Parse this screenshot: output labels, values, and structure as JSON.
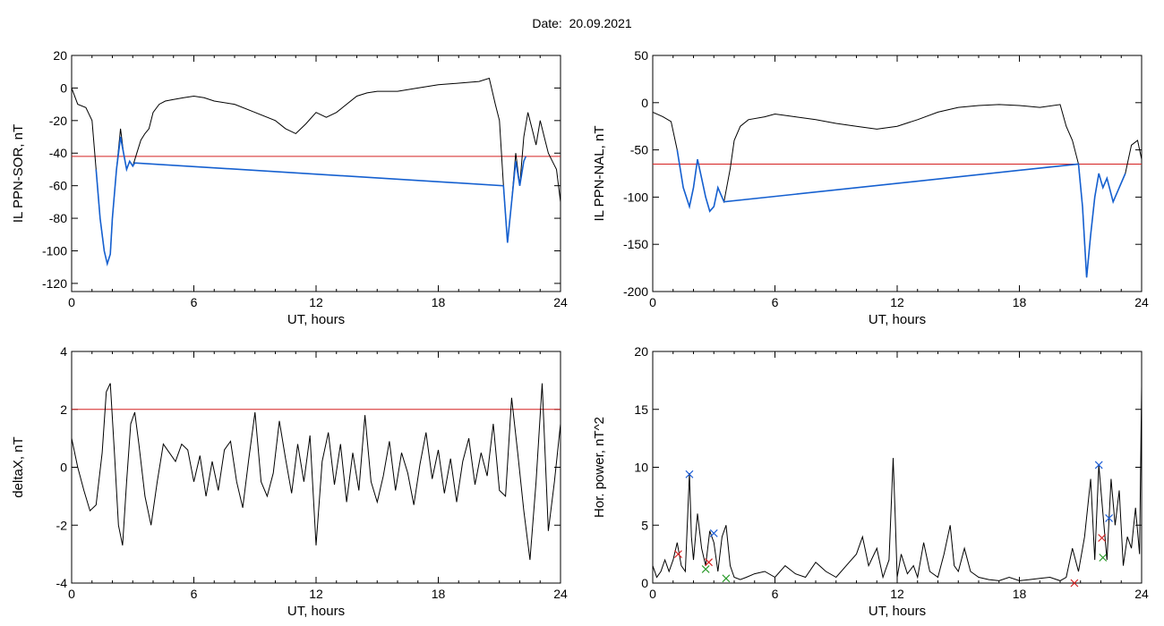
{
  "title": "Date:  20.09.2021",
  "colors": {
    "trace": "#000000",
    "threshold": "#d42020",
    "substorm": "#1560d0",
    "marker_blue": "#1f5fd6",
    "marker_red": "#d42020",
    "marker_green": "#2a9a2a"
  },
  "chart_data": [
    {
      "id": "p1",
      "type": "line",
      "xlabel": "UT, hours",
      "ylabel": "IL PPN-SOR, nT",
      "xlim": [
        0,
        24
      ],
      "ylim": [
        -125,
        20
      ],
      "xticks": [
        0,
        6,
        12,
        18,
        24
      ],
      "yticks": [
        20,
        0,
        -20,
        -40,
        -60,
        -80,
        -100,
        -120
      ],
      "threshold": -42,
      "series": [
        {
          "x": [
            0,
            0.3,
            0.7,
            1.0,
            1.2,
            1.4,
            1.6,
            1.75,
            1.9,
            2.0,
            2.2,
            2.4,
            2.55,
            2.7,
            2.85,
            3.0,
            3.2,
            3.4,
            3.6,
            3.8,
            4.0,
            4.3,
            4.6,
            5.0,
            5.5,
            6.0,
            6.5,
            7.0,
            8.0,
            9.0,
            10.0,
            10.5,
            11.0,
            11.5,
            12.0,
            12.5,
            13.0,
            14.0,
            14.5,
            15.0,
            16.0,
            17.0,
            18.0,
            19.0,
            20.0,
            20.5,
            20.8,
            21.0,
            21.2,
            21.4,
            21.6,
            21.8,
            22.0,
            22.2,
            22.4,
            22.6,
            22.8,
            23.0,
            23.2,
            23.4,
            23.6,
            23.8,
            24.0
          ],
          "y": [
            0,
            -10,
            -12,
            -20,
            -50,
            -80,
            -100,
            -108,
            -102,
            -80,
            -50,
            -25,
            -40,
            -50,
            -45,
            -48,
            -40,
            -32,
            -28,
            -25,
            -15,
            -10,
            -8,
            -7,
            -6,
            -5,
            -6,
            -8,
            -10,
            -15,
            -20,
            -25,
            -28,
            -22,
            -15,
            -18,
            -15,
            -5,
            -3,
            -2,
            -2,
            0,
            2,
            3,
            4,
            6,
            -10,
            -20,
            -60,
            -95,
            -70,
            -40,
            -60,
            -30,
            -15,
            -25,
            -35,
            -20,
            -30,
            -40,
            -45,
            -50,
            -70
          ]
        },
        {
          "x": [
            1.2,
            1.4,
            1.6,
            1.75,
            1.9,
            2.0,
            2.2,
            2.4,
            2.55,
            2.7,
            2.85,
            3.0,
            3.1,
            21.2,
            21.4,
            21.6,
            21.8,
            22.0,
            22.2,
            22.3
          ],
          "y": [
            -50,
            -80,
            -100,
            -108,
            -102,
            -80,
            -50,
            -30,
            -40,
            -50,
            -45,
            -48,
            -46,
            -60,
            -95,
            -70,
            -45,
            -60,
            -45,
            -42
          ]
        }
      ]
    },
    {
      "id": "p2",
      "type": "line",
      "xlabel": "UT, hours",
      "ylabel": "IL PPN-NAL, nT",
      "xlim": [
        0,
        24
      ],
      "ylim": [
        -200,
        50
      ],
      "xticks": [
        0,
        6,
        12,
        18,
        24
      ],
      "yticks": [
        50,
        0,
        -50,
        -100,
        -150,
        -200
      ],
      "threshold": -65,
      "series": [
        {
          "x": [
            0,
            0.5,
            0.9,
            1.2,
            1.5,
            1.8,
            2.0,
            2.2,
            2.4,
            2.6,
            2.8,
            3.0,
            3.2,
            3.5,
            3.8,
            4.0,
            4.3,
            4.7,
            5.5,
            6.0,
            7.0,
            8.0,
            9.0,
            10.0,
            11.0,
            12.0,
            13.0,
            14.0,
            15.0,
            16.0,
            17.0,
            18.0,
            19.0,
            20.0,
            20.3,
            20.6,
            20.9,
            21.1,
            21.3,
            21.5,
            21.7,
            21.9,
            22.1,
            22.3,
            22.6,
            22.9,
            23.2,
            23.5,
            23.8,
            24.0
          ],
          "y": [
            -10,
            -15,
            -20,
            -50,
            -90,
            -110,
            -90,
            -60,
            -80,
            -100,
            -115,
            -110,
            -90,
            -105,
            -70,
            -40,
            -25,
            -18,
            -15,
            -12,
            -15,
            -18,
            -22,
            -25,
            -28,
            -25,
            -18,
            -10,
            -5,
            -3,
            -2,
            -3,
            -5,
            -2,
            -25,
            -40,
            -65,
            -110,
            -185,
            -140,
            -100,
            -75,
            -90,
            -80,
            -105,
            -90,
            -75,
            -45,
            -40,
            -60
          ]
        },
        {
          "x": [
            1.2,
            1.5,
            1.8,
            2.0,
            2.2,
            2.4,
            2.6,
            2.8,
            3.0,
            3.2,
            3.5,
            20.9,
            21.1,
            21.3,
            21.5,
            21.7,
            21.9,
            22.1,
            22.3,
            22.6,
            22.9,
            23.2
          ],
          "y": [
            -50,
            -90,
            -110,
            -90,
            -60,
            -80,
            -100,
            -115,
            -110,
            -90,
            -105,
            -65,
            -110,
            -185,
            -140,
            -100,
            -75,
            -90,
            -80,
            -105,
            -90,
            -75
          ]
        }
      ]
    },
    {
      "id": "p3",
      "type": "line",
      "xlabel": "UT, hours",
      "ylabel": "deltaX, nT",
      "xlim": [
        0,
        24
      ],
      "ylim": [
        -4,
        4
      ],
      "xticks": [
        0,
        6,
        12,
        18,
        24
      ],
      "yticks": [
        4,
        2,
        0,
        -2,
        -4
      ],
      "threshold": 2,
      "series": [
        {
          "x": [
            0,
            0.3,
            0.6,
            0.9,
            1.2,
            1.5,
            1.7,
            1.9,
            2.1,
            2.3,
            2.5,
            2.7,
            2.9,
            3.1,
            3.3,
            3.6,
            3.9,
            4.2,
            4.5,
            4.8,
            5.1,
            5.4,
            5.7,
            6.0,
            6.3,
            6.6,
            6.9,
            7.2,
            7.5,
            7.8,
            8.1,
            8.4,
            8.7,
            9.0,
            9.3,
            9.6,
            9.9,
            10.2,
            10.5,
            10.8,
            11.1,
            11.4,
            11.7,
            12.0,
            12.3,
            12.6,
            12.9,
            13.2,
            13.5,
            13.8,
            14.1,
            14.4,
            14.7,
            15.0,
            15.3,
            15.6,
            15.9,
            16.2,
            16.5,
            16.8,
            17.1,
            17.4,
            17.7,
            18.0,
            18.3,
            18.6,
            18.9,
            19.2,
            19.5,
            19.8,
            20.1,
            20.4,
            20.7,
            21.0,
            21.3,
            21.6,
            21.9,
            22.2,
            22.5,
            22.8,
            23.1,
            23.4,
            23.7,
            24.0
          ],
          "y": [
            1.0,
            0.0,
            -0.8,
            -1.5,
            -1.3,
            0.5,
            2.6,
            2.9,
            0.5,
            -2.0,
            -2.7,
            -0.5,
            1.5,
            1.9,
            0.8,
            -1.0,
            -2.0,
            -0.5,
            0.8,
            0.5,
            0.2,
            0.8,
            0.6,
            -0.5,
            0.4,
            -1.0,
            0.2,
            -0.8,
            0.6,
            0.9,
            -0.5,
            -1.4,
            0.3,
            1.9,
            -0.5,
            -1.0,
            -0.2,
            1.6,
            0.3,
            -0.9,
            0.8,
            -0.5,
            1.1,
            -2.7,
            0.2,
            1.2,
            -0.6,
            0.8,
            -1.2,
            0.5,
            -0.8,
            1.8,
            -0.5,
            -1.2,
            -0.3,
            0.9,
            -0.8,
            0.5,
            -0.2,
            -1.3,
            0.1,
            1.2,
            -0.4,
            0.6,
            -0.9,
            0.3,
            -1.2,
            0.2,
            1.0,
            -0.6,
            0.5,
            -0.3,
            1.5,
            -0.8,
            -1.0,
            2.4,
            0.5,
            -1.5,
            -3.2,
            -0.5,
            2.9,
            -2.2,
            -0.5,
            1.5
          ]
        }
      ]
    },
    {
      "id": "p4",
      "type": "line",
      "xlabel": "UT, hours",
      "ylabel": "Hor. power, nT^2",
      "xlim": [
        0,
        24
      ],
      "ylim": [
        0,
        20
      ],
      "xticks": [
        0,
        6,
        12,
        18,
        24
      ],
      "yticks": [
        20,
        15,
        10,
        5,
        0
      ],
      "threshold": null,
      "series": [
        {
          "x": [
            0,
            0.2,
            0.4,
            0.6,
            0.8,
            1.0,
            1.2,
            1.4,
            1.6,
            1.8,
            1.9,
            2.0,
            2.2,
            2.4,
            2.6,
            2.8,
            3.0,
            3.2,
            3.4,
            3.6,
            3.8,
            4.0,
            4.3,
            4.6,
            5.0,
            5.5,
            6.0,
            6.5,
            7.0,
            7.5,
            8.0,
            8.5,
            9.0,
            9.5,
            10.0,
            10.3,
            10.6,
            11.0,
            11.3,
            11.6,
            11.8,
            11.9,
            12.0,
            12.2,
            12.5,
            12.8,
            13.0,
            13.3,
            13.6,
            14.0,
            14.3,
            14.6,
            14.8,
            15.0,
            15.3,
            15.6,
            16.0,
            16.5,
            17.0,
            17.5,
            18.0,
            18.5,
            19.0,
            19.5,
            20.0,
            20.3,
            20.6,
            20.9,
            21.2,
            21.5,
            21.7,
            21.9,
            22.1,
            22.3,
            22.5,
            22.7,
            22.9,
            23.1,
            23.3,
            23.5,
            23.7,
            23.9,
            24.0
          ],
          "y": [
            1.5,
            0.5,
            1.0,
            2.0,
            1.0,
            2.0,
            3.5,
            1.5,
            1.0,
            9.5,
            4.0,
            2.0,
            6.0,
            3.0,
            1.5,
            4.5,
            3.5,
            1.0,
            4.0,
            5.0,
            1.5,
            0.5,
            0.3,
            0.5,
            0.8,
            1.0,
            0.5,
            1.5,
            0.8,
            0.5,
            1.8,
            1.0,
            0.5,
            1.5,
            2.5,
            4.0,
            1.5,
            3.0,
            0.5,
            2.0,
            10.8,
            6.0,
            0.5,
            2.5,
            0.8,
            1.5,
            0.5,
            3.5,
            1.0,
            0.5,
            2.5,
            5.0,
            1.5,
            1.0,
            3.0,
            1.0,
            0.5,
            0.3,
            0.2,
            0.5,
            0.2,
            0.3,
            0.4,
            0.5,
            0.2,
            0.5,
            3.0,
            1.0,
            4.0,
            9.0,
            2.0,
            10.2,
            6.0,
            2.0,
            9.0,
            5.0,
            8.0,
            1.5,
            4.0,
            3.0,
            6.5,
            2.5,
            17.0
          ]
        }
      ],
      "markers": {
        "blue": {
          "x": [
            1.8,
            3.0,
            21.9,
            22.4
          ],
          "y": [
            9.4,
            4.3,
            10.2,
            5.6
          ]
        },
        "red": {
          "x": [
            1.25,
            2.75,
            22.05,
            20.7
          ],
          "y": [
            2.5,
            1.8,
            3.9,
            0.0
          ]
        },
        "green": {
          "x": [
            2.6,
            3.6,
            22.1
          ],
          "y": [
            1.2,
            0.4,
            2.2
          ]
        }
      }
    }
  ]
}
